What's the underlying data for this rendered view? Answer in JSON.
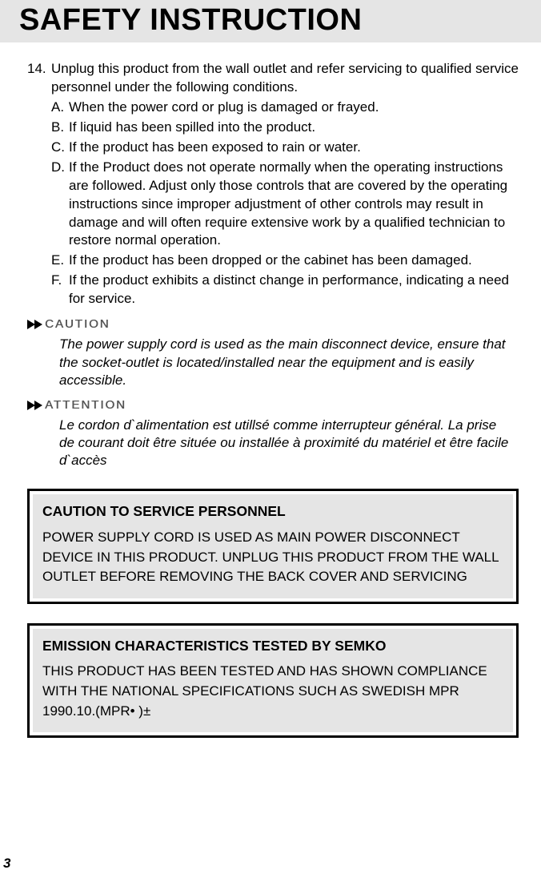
{
  "title": "SAFETY INSTRUCTION",
  "item14": {
    "num": "14.",
    "intro": "Unplug this product from the wall outlet and refer servicing to qualified service personnel under the following conditions.",
    "subs": {
      "A": {
        "letter": "A.",
        "text": "When the power cord or plug is damaged or frayed."
      },
      "B": {
        "letter": "B.",
        "text": "If liquid has been spilled into the product."
      },
      "C": {
        "letter": "C.",
        "text": "If the product has been exposed to rain or water."
      },
      "D": {
        "letter": "D.",
        "text": "If the Product does not operate normally when the operating instructions are followed. Adjust only those controls that are covered by the operating instructions since improper adjustment of other controls may result in damage and will often require extensive work by a qualified technician to restore normal operation."
      },
      "E": {
        "letter": "E.",
        "text": "If the product has been dropped or the cabinet has been damaged."
      },
      "F": {
        "letter": "F.",
        "text": "If the product exhibits a distinct change in performance, indicating a need for service."
      }
    }
  },
  "caution": {
    "label": "CAUTION",
    "text": "The power supply cord is used as the main disconnect device, ensure that the socket-outlet is located/installed near the equipment and is easily accessible."
  },
  "attention": {
    "label": "ATTENTION",
    "text": "Le cordon  d`alimentation est utillsé comme interrupteur général. La prise de courant doit être située ou installée à proximité du matériel et être facile d`accès"
  },
  "box1": {
    "title": "CAUTION TO SERVICE PERSONNEL",
    "body": "POWER SUPPLY CORD IS USED AS MAIN POWER DISCONNECT DEVICE IN THIS PRODUCT. UNPLUG THIS PRODUCT FROM THE WALL OUTLET BEFORE REMOVING THE BACK COVER AND SERVICING"
  },
  "box2": {
    "title": "EMISSION CHARACTERISTICS TESTED BY SEMKO",
    "body": "THIS PRODUCT HAS BEEN TESTED AND HAS SHOWN COMPLIANCE WITH THE NATIONAL SPECIFICATIONS SUCH AS SWEDISH MPR 1990.10.(MPR• )±"
  },
  "page_number": "3",
  "colors": {
    "page_bg": "#ffffff",
    "title_bg": "#e5e5e5",
    "box_bg": "#e5e5e5",
    "text": "#000000",
    "marker_text": "#555555"
  },
  "fonts": {
    "title_size": 38,
    "body_size": 17,
    "marker_size": 15,
    "box_title_size": 17.5
  }
}
